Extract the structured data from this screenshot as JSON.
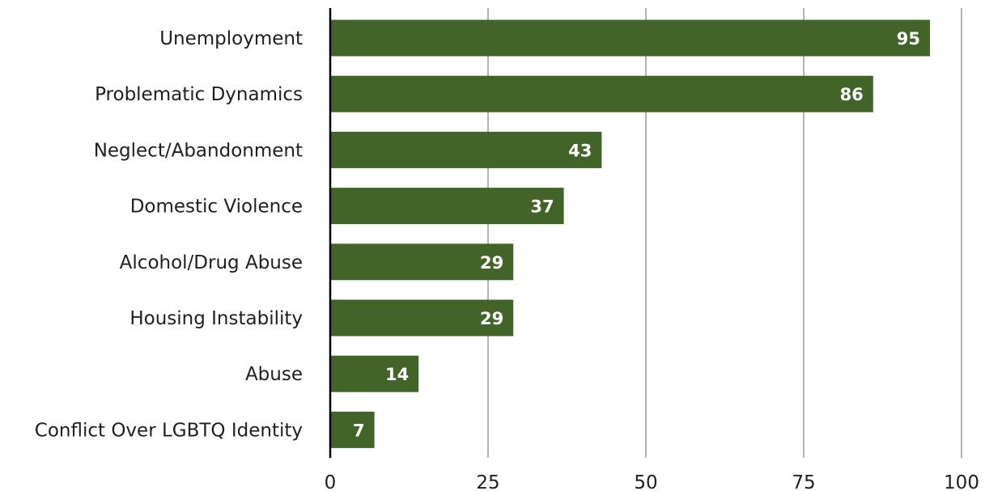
{
  "chart_data": {
    "type": "bar",
    "orientation": "horizontal",
    "categories": [
      "Unemployment",
      "Problematic Dynamics",
      "Neglect/Abandonment",
      "Domestic Violence",
      "Alcohol/Drug Abuse",
      "Housing Instability",
      "Abuse",
      "Conflict Over LGBTQ Identity"
    ],
    "values": [
      95,
      86,
      43,
      37,
      29,
      29,
      14,
      7
    ],
    "data_labels": [
      "95",
      "86",
      "43",
      "37",
      "29",
      "29",
      "14",
      "7"
    ],
    "xlim": [
      0,
      100
    ],
    "x_ticks": [
      0,
      25,
      50,
      75,
      100
    ],
    "x_tick_labels": [
      "0",
      "25",
      "50",
      "75",
      "100"
    ],
    "grid": "vertical",
    "legend": "none",
    "colors": {
      "bar": "#426428",
      "grid": "#b3b3b3",
      "axis": "#000000",
      "label_text": "#1f1f1f",
      "data_label_text": "#ffffff"
    }
  }
}
